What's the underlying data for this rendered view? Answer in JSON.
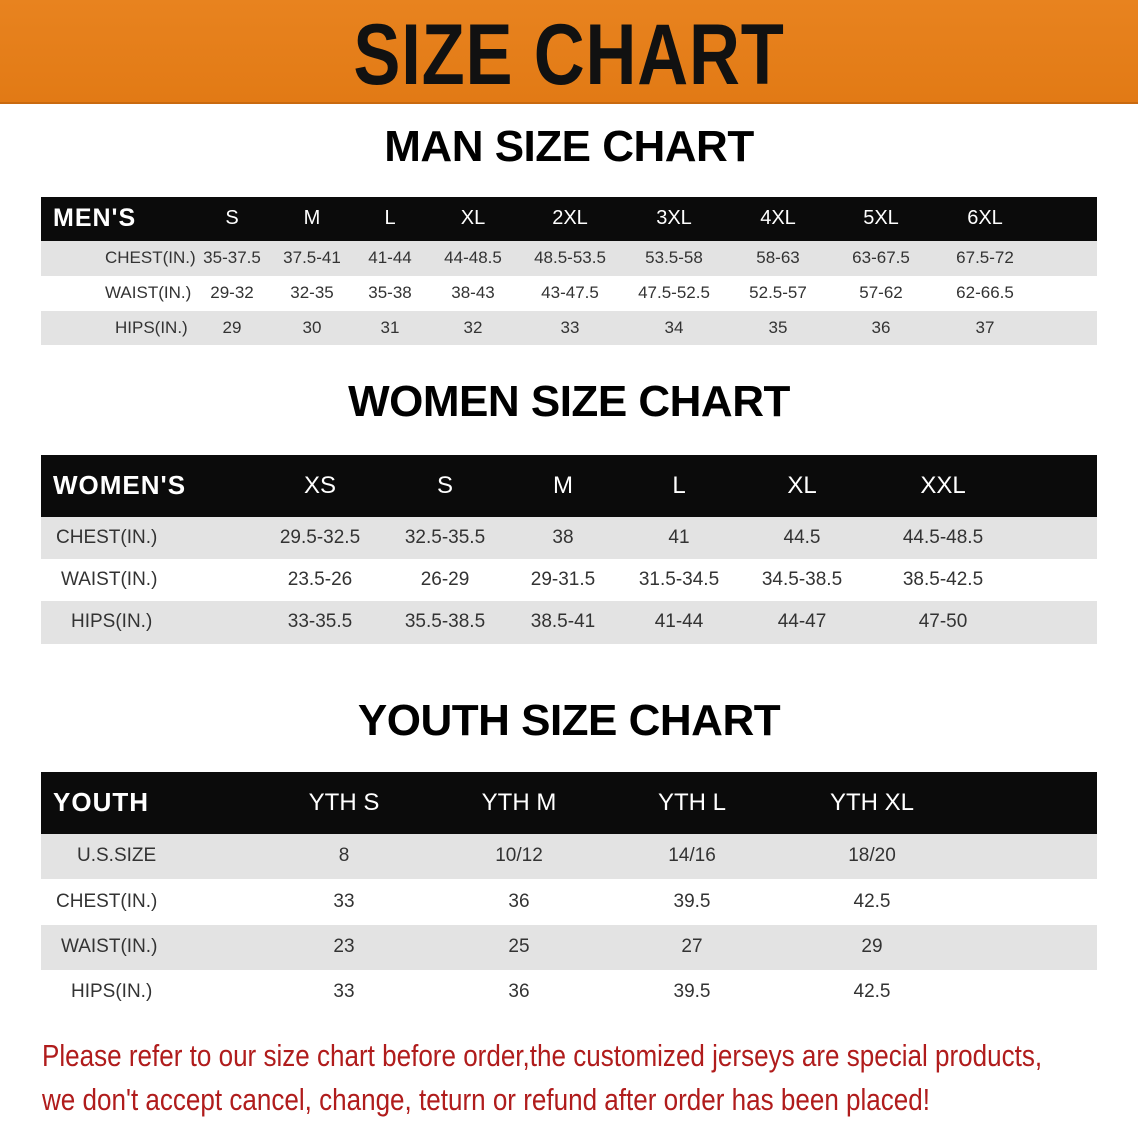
{
  "banner_title": "SIZE CHART",
  "colors": {
    "banner": "#e8801c",
    "header_bg": "#0b0b0b",
    "stripe": "#e3e3e3",
    "notice": "#b01c1c"
  },
  "men": {
    "title": "MAN SIZE CHART",
    "header_label": "MEN'S",
    "sizes": [
      "S",
      "M",
      "L",
      "XL",
      "2XL",
      "3XL",
      "4XL",
      "5XL",
      "6XL"
    ],
    "rows": [
      {
        "label": "CHEST(IN.)",
        "values": [
          "35-37.5",
          "37.5-41",
          "41-44",
          "44-48.5",
          "48.5-53.5",
          "53.5-58",
          "58-63",
          "63-67.5",
          "67.5-72"
        ]
      },
      {
        "label": "WAIST(IN.)",
        "values": [
          "29-32",
          "32-35",
          "35-38",
          "38-43",
          "43-47.5",
          "47.5-52.5",
          "52.5-57",
          "57-62",
          "62-66.5"
        ]
      },
      {
        "label": "HIPS(IN.)",
        "values": [
          "29",
          "30",
          "31",
          "32",
          "33",
          "34",
          "35",
          "36",
          "37"
        ]
      }
    ]
  },
  "women": {
    "title": "WOMEN SIZE CHART",
    "header_label": "WOMEN'S",
    "sizes": [
      "XS",
      "S",
      "M",
      "L",
      "XL",
      "XXL"
    ],
    "rows": [
      {
        "label": "CHEST(IN.)",
        "values": [
          "29.5-32.5",
          "32.5-35.5",
          "38",
          "41",
          "44.5",
          "44.5-48.5"
        ]
      },
      {
        "label": "WAIST(IN.)",
        "values": [
          "23.5-26",
          "26-29",
          "29-31.5",
          "31.5-34.5",
          "34.5-38.5",
          "38.5-42.5"
        ]
      },
      {
        "label": "HIPS(IN.)",
        "values": [
          "33-35.5",
          "35.5-38.5",
          "38.5-41",
          "41-44",
          "44-47",
          "47-50"
        ]
      }
    ]
  },
  "youth": {
    "title": "YOUTH SIZE CHART",
    "header_label": "YOUTH",
    "sizes": [
      "YTH S",
      "YTH M",
      "YTH L",
      "YTH XL"
    ],
    "rows": [
      {
        "label": "U.S.SIZE",
        "values": [
          "8",
          "10/12",
          "14/16",
          "18/20"
        ]
      },
      {
        "label": "CHEST(IN.)",
        "values": [
          "33",
          "36",
          "39.5",
          "42.5"
        ]
      },
      {
        "label": "WAIST(IN.)",
        "values": [
          "23",
          "25",
          "27",
          "29"
        ]
      },
      {
        "label": "HIPS(IN.)",
        "values": [
          "33",
          "36",
          "39.5",
          "42.5"
        ]
      }
    ]
  },
  "notice": {
    "line1": "Please refer to our size chart before order,the customized jerseys are special products,",
    "line2": "we don't accept cancel, change, teturn or refund after order has been placed!"
  }
}
